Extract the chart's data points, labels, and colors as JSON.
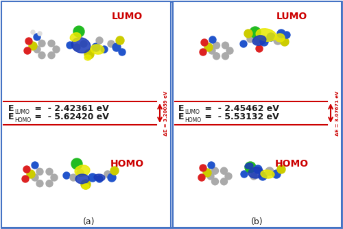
{
  "fig_width": 5.0,
  "fig_height": 3.34,
  "dpi": 100,
  "bg_color": "#ffffff",
  "border_color": "#4472c4",
  "panel_a": {
    "label": "(a)",
    "lumo_label": "LUMO",
    "homo_label": "HOMO",
    "elumo_full": "Eₛᵁᴹᴼ =  - 2.42361 eV",
    "ehomo_full": "Eₚᴼᴹᴼ =  - 5.62420 eV",
    "elumo_main": "E",
    "elumo_sub": "LUMO",
    "elumo_val": " =  - 2.42361 eV",
    "ehomo_main": "E",
    "ehomo_sub": "HOMO",
    "ehomo_val": " =  - 5.62420 eV",
    "delta_e": "ΔE = 3.20059 eV"
  },
  "panel_b": {
    "label": "(b)",
    "lumo_label": "LUMO",
    "homo_label": "HOMO",
    "elumo_main": "E",
    "elumo_sub": "LUMO",
    "elumo_val": " =  - 2.45462 eV",
    "ehomo_main": "E",
    "ehomo_sub": "HOMO",
    "ehomo_val": " =  - 5.53132 eV",
    "delta_e": "ΔE = 3.07671 eV"
  },
  "red_color": "#cc0000",
  "black_color": "#1a1a1a",
  "border_col": "#4472c4",
  "yellow_orb": "#e8e800",
  "blue_orb": "#1a3ab8",
  "atom_gray": "#aaaaaa",
  "atom_dark": "#666666",
  "atom_blue": "#2255cc",
  "atom_green": "#22bb22",
  "atom_red": "#dd2222",
  "atom_yellow": "#cccc00",
  "atom_white": "#dddddd"
}
